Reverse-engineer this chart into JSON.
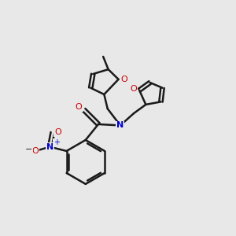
{
  "bg_color": "#e8e8e8",
  "bond_color": "#1a1a1a",
  "oxygen_color": "#cc0000",
  "nitrogen_color": "#0000cc",
  "bond_width": 1.8,
  "figsize": [
    3.0,
    3.0
  ],
  "dpi": 100,
  "xlim": [
    0,
    10
  ],
  "ylim": [
    0,
    10
  ]
}
